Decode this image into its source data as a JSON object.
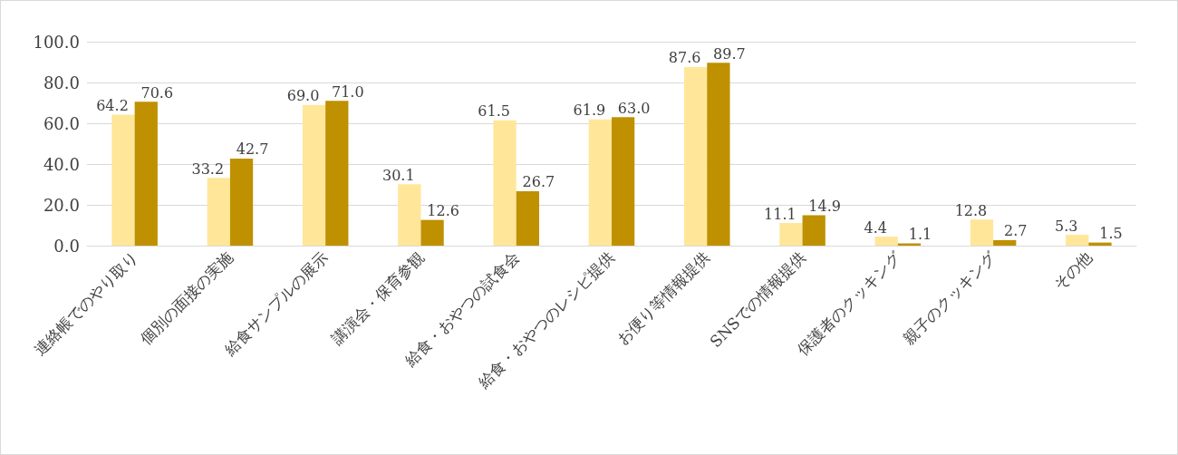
{
  "chart_data": {
    "type": "bar",
    "categories": [
      "連絡帳でのやり取り",
      "個別の面接の実施",
      "給食サンプルの展示",
      "講演会・保育参観",
      "給食・おやつの試食会",
      "給食・おやつのレシピ提供",
      "お便り等情報提供",
      "SNSでの情報提供",
      "保護者のクッキング",
      "親子のクッキング",
      "その他"
    ],
    "series": [
      {
        "color": "#ffe699",
        "values": [
          64.2,
          33.2,
          69.0,
          30.1,
          61.5,
          61.9,
          87.6,
          11.1,
          4.4,
          12.8,
          5.3
        ],
        "value_labels": [
          "64.2",
          "33.2",
          "69.0",
          "30.1",
          "61.5",
          "61.9",
          "87.6",
          "11.1",
          "4.4",
          "12.8",
          "5.3"
        ]
      },
      {
        "color": "#bf9000",
        "values": [
          70.6,
          42.7,
          71.0,
          12.6,
          26.7,
          63.0,
          89.7,
          14.9,
          1.1,
          2.7,
          1.5
        ],
        "value_labels": [
          "70.6",
          "42.7",
          "71.0",
          "12.6",
          "26.7",
          "63.0",
          "89.7",
          "14.9",
          "1.1",
          "2.7",
          "1.5"
        ]
      }
    ],
    "ylim": [
      0,
      100
    ],
    "yticks": [
      {
        "value": 0,
        "label": "0.0"
      },
      {
        "value": 20,
        "label": "20.0"
      },
      {
        "value": 40,
        "label": "40.0"
      },
      {
        "value": 60,
        "label": "60.0"
      },
      {
        "value": 80,
        "label": "80.0"
      },
      {
        "value": 100,
        "label": "100.0"
      }
    ],
    "grid": "y"
  }
}
